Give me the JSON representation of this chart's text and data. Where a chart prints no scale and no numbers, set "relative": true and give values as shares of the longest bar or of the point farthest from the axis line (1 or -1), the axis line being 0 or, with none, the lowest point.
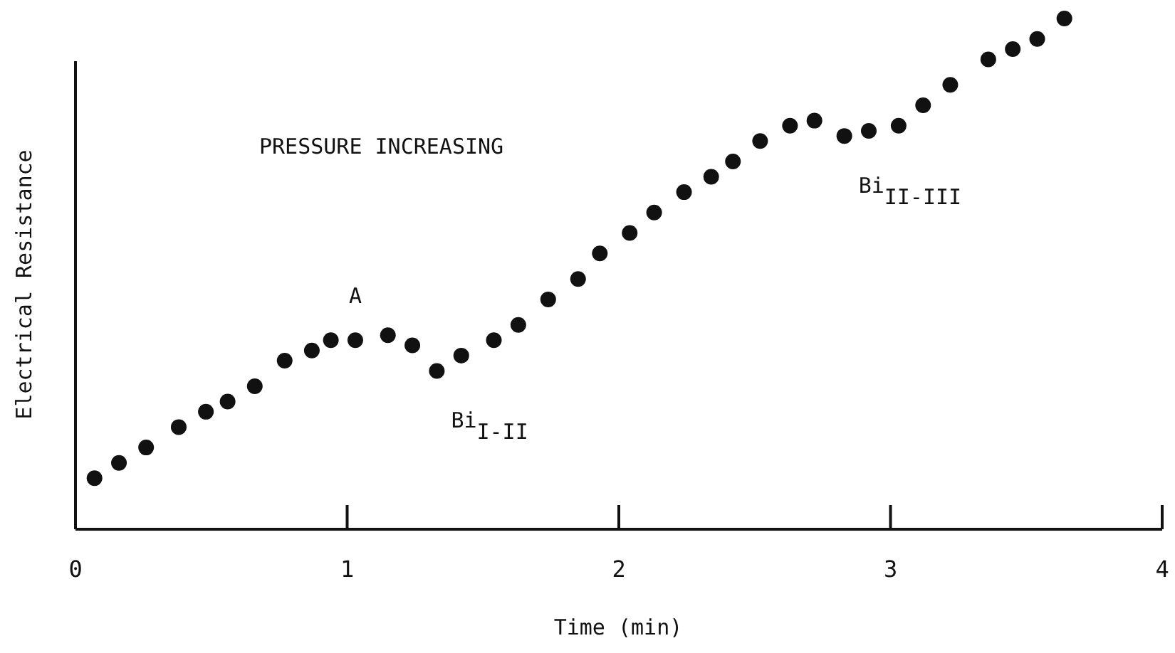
{
  "chart_data": {
    "type": "scatter",
    "relative": true,
    "marker": "circle",
    "grid": false,
    "xlabel": "Time (min)",
    "ylabel": "Electrical Resistance",
    "xlim": [
      0,
      4
    ],
    "xticks": [
      0,
      1,
      2,
      3,
      4
    ],
    "x": [
      0.07,
      0.16,
      0.26,
      0.38,
      0.48,
      0.56,
      0.66,
      0.77,
      0.87,
      0.94,
      1.03,
      1.15,
      1.24,
      1.33,
      1.42,
      1.54,
      1.63,
      1.74,
      1.85,
      1.93,
      2.04,
      2.13,
      2.24,
      2.34,
      2.42,
      2.52,
      2.63,
      2.72,
      2.83,
      2.92,
      3.03,
      3.12,
      3.22,
      3.36,
      3.45,
      3.54,
      3.64
    ],
    "series": [
      {
        "color": "#111111",
        "values": [
          0.1,
          0.13,
          0.16,
          0.2,
          0.23,
          0.25,
          0.28,
          0.33,
          0.35,
          0.37,
          0.37,
          0.38,
          0.36,
          0.31,
          0.34,
          0.37,
          0.4,
          0.45,
          0.49,
          0.54,
          0.58,
          0.62,
          0.66,
          0.69,
          0.72,
          0.76,
          0.79,
          0.8,
          0.77,
          0.78,
          0.79,
          0.83,
          0.87,
          0.92,
          0.94,
          0.96,
          1
        ]
      }
    ],
    "annotations": [
      "PRESSURE INCREASING",
      {
        "text": "A",
        "x": 1.03,
        "y": 0.37
      },
      {
        "text": "Bi$_{I-II}$",
        "x": 1.33,
        "y": 0.31
      },
      {
        "text": "Bi$_{II-III}$",
        "x": 2.83,
        "y": 0.77
      }
    ]
  }
}
